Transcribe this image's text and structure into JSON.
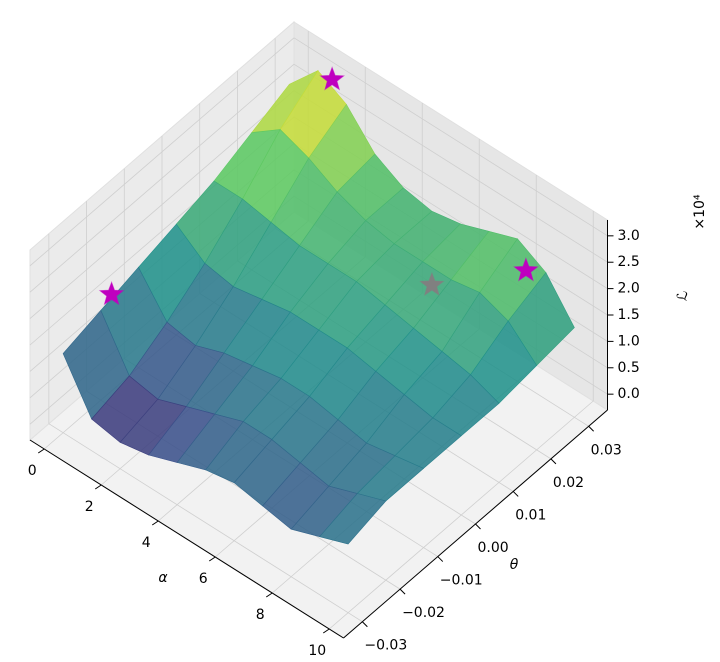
{
  "chart_data": {
    "type": "surface3d",
    "x_label": "α",
    "y_label": "θ",
    "z_label": "ℒ",
    "z_offset_label": "×10⁴",
    "xlim": [
      -0.5,
      10.5
    ],
    "ylim": [
      -0.035,
      0.035
    ],
    "zlim": [
      -0.3,
      3.3
    ],
    "xticks": [
      0,
      2,
      4,
      6,
      8,
      10
    ],
    "yticks": [
      {
        "value": -0.03,
        "label": "−0.03"
      },
      {
        "value": -0.02,
        "label": "−0.02"
      },
      {
        "value": -0.01,
        "label": "−0.01"
      },
      {
        "value": 0,
        "label": "0.00"
      },
      0.01,
      0.02,
      0.03
    ],
    "zticks": [
      {
        "value": 0,
        "label": "0.0"
      },
      0.5,
      {
        "value": 1,
        "label": "1.0"
      },
      1.5,
      {
        "value": 2,
        "label": "2.0"
      },
      2.5,
      {
        "value": 3,
        "label": "3.0"
      }
    ],
    "grid": true,
    "surface": {
      "alpha": [
        0,
        1,
        2,
        3,
        4,
        5,
        6,
        7,
        8,
        9,
        10
      ],
      "theta": [
        -0.03,
        -0.02,
        -0.01,
        0,
        0.01,
        0.02,
        0.03
      ],
      "z": [
        [
          1.2,
          0.3,
          0.2,
          0.3,
          0.5,
          0.7,
          0.8,
          0.7,
          0.6,
          0.8,
          1.0
        ],
        [
          1.4,
          0.5,
          0.4,
          0.6,
          0.8,
          1.0,
          1.0,
          0.9,
          0.8,
          1.0,
          1.2
        ],
        [
          1.6,
          0.9,
          0.8,
          1.0,
          1.1,
          1.2,
          1.2,
          1.1,
          1.0,
          1.1,
          1.2
        ],
        [
          1.8,
          1.4,
          1.3,
          1.4,
          1.5,
          1.5,
          1.5,
          1.4,
          1.3,
          1.2,
          1.2
        ],
        [
          2.0,
          2.0,
          1.9,
          1.8,
          1.8,
          1.8,
          1.7,
          1.6,
          1.5,
          1.4,
          1.2
        ],
        [
          2.3,
          2.7,
          2.5,
          2.2,
          2.0,
          1.9,
          1.9,
          1.9,
          2.0,
          1.8,
          1.3
        ],
        [
          2.6,
          3.2,
          2.9,
          2.3,
          2.0,
          1.9,
          2.0,
          2.2,
          2.4,
          2.1,
          1.4
        ]
      ]
    },
    "markers": [
      {
        "alpha": 1.5,
        "theta": 0.03,
        "z": 3.2,
        "color": "#bf00bf"
      },
      {
        "alpha": 1.7,
        "theta": -0.03,
        "z": 2.9,
        "color": "#bf00bf"
      },
      {
        "alpha": 8.3,
        "theta": 0.03,
        "z": 1.9,
        "color": "#bf00bf"
      },
      {
        "alpha": 5,
        "theta": 0.03,
        "z": 0.5,
        "color": "#808080"
      }
    ]
  }
}
